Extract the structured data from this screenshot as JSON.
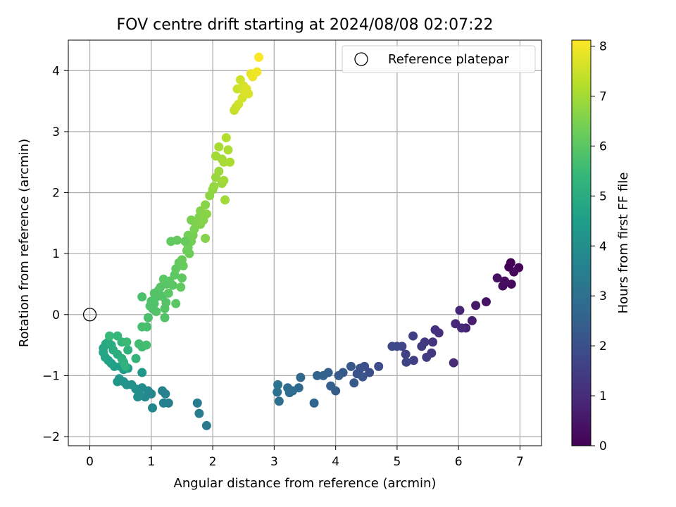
{
  "chart_data": {
    "type": "scatter",
    "title": "FOV centre drift starting at 2024/08/08 02:07:22",
    "xlabel": "Angular distance from reference (arcmin)",
    "ylabel": "Rotation from reference (arcmin)",
    "xlim": [
      -0.35,
      7.35
    ],
    "ylim": [
      -2.15,
      4.5
    ],
    "xticks": [
      0,
      1,
      2,
      3,
      4,
      5,
      6,
      7
    ],
    "yticks": [
      -2,
      -1,
      0,
      1,
      2,
      3,
      4
    ],
    "grid": true,
    "legend": {
      "position": "top-right",
      "entries": [
        "Reference platepar"
      ]
    },
    "reference_point": {
      "x": 0,
      "y": 0
    },
    "colorbar": {
      "label": "Hours from first FF file",
      "colormap": "viridis",
      "range": [
        0,
        8.12
      ],
      "ticks": [
        0,
        1,
        2,
        3,
        4,
        5,
        6,
        7,
        8
      ]
    },
    "colormap_stops": [
      "#440154",
      "#482878",
      "#3e4989",
      "#31688e",
      "#26828e",
      "#1f9e89",
      "#35b779",
      "#6ece58",
      "#b5de2b",
      "#fde725"
    ],
    "points": [
      [
        6.85,
        0.85,
        0.0
      ],
      [
        6.82,
        0.78,
        0.05
      ],
      [
        6.98,
        0.77,
        0.1
      ],
      [
        6.9,
        0.7,
        0.15
      ],
      [
        6.86,
        0.5,
        0.2
      ],
      [
        6.72,
        0.47,
        0.25
      ],
      [
        6.75,
        0.55,
        0.3
      ],
      [
        6.63,
        0.6,
        0.35
      ],
      [
        6.45,
        0.21,
        0.45
      ],
      [
        6.28,
        0.15,
        0.55
      ],
      [
        6.22,
        -0.1,
        0.65
      ],
      [
        6.12,
        -0.22,
        0.75
      ],
      [
        6.02,
        0.07,
        0.85
      ],
      [
        5.95,
        -0.15,
        0.9
      ],
      [
        5.92,
        -0.79,
        1.0
      ],
      [
        6.05,
        -0.22,
        0.95
      ],
      [
        5.68,
        -0.3,
        1.1
      ],
      [
        5.62,
        -0.25,
        1.15
      ],
      [
        5.58,
        -0.45,
        1.2
      ],
      [
        5.56,
        -0.63,
        1.25
      ],
      [
        5.45,
        -0.45,
        1.35
      ],
      [
        5.4,
        -0.52,
        1.4
      ],
      [
        5.48,
        -0.7,
        1.45
      ],
      [
        5.26,
        -0.35,
        1.5
      ],
      [
        5.27,
        -0.75,
        1.55
      ],
      [
        5.14,
        -0.65,
        1.6
      ],
      [
        5.15,
        -0.78,
        1.65
      ],
      [
        5.08,
        -0.52,
        1.7
      ],
      [
        5.0,
        -0.52,
        1.75
      ],
      [
        4.92,
        -0.52,
        1.8
      ],
      [
        4.7,
        -0.85,
        1.9
      ],
      [
        4.55,
        -0.95,
        1.95
      ],
      [
        4.47,
        -0.85,
        2.0
      ],
      [
        4.4,
        -0.88,
        2.05
      ],
      [
        4.35,
        -0.97,
        2.1
      ],
      [
        4.44,
        -1.02,
        2.15
      ],
      [
        4.3,
        -1.12,
        2.2
      ],
      [
        4.25,
        -0.85,
        2.25
      ],
      [
        4.12,
        -0.95,
        2.3
      ],
      [
        4.05,
        -1.0,
        2.35
      ],
      [
        4.0,
        -1.25,
        2.4
      ],
      [
        3.92,
        -1.17,
        2.45
      ],
      [
        3.88,
        -0.95,
        2.5
      ],
      [
        3.8,
        -1.0,
        2.55
      ],
      [
        3.7,
        -1.0,
        2.6
      ],
      [
        3.65,
        -1.45,
        2.65
      ],
      [
        3.43,
        -1.03,
        2.7
      ],
      [
        3.4,
        -1.2,
        2.75
      ],
      [
        3.3,
        -1.25,
        2.8
      ],
      [
        3.22,
        -1.2,
        2.85
      ],
      [
        3.25,
        -1.28,
        2.9
      ],
      [
        3.08,
        -1.42,
        2.95
      ],
      [
        3.05,
        -1.27,
        3.0
      ],
      [
        3.06,
        -1.15,
        3.05
      ],
      [
        1.9,
        -1.82,
        3.3
      ],
      [
        1.78,
        -1.62,
        3.35
      ],
      [
        1.75,
        -1.45,
        3.4
      ],
      [
        1.28,
        -1.45,
        3.5
      ],
      [
        1.2,
        -1.45,
        3.55
      ],
      [
        1.23,
        -1.3,
        3.6
      ],
      [
        1.18,
        -1.25,
        3.65
      ],
      [
        1.02,
        -1.53,
        3.7
      ],
      [
        1.0,
        -1.3,
        3.75
      ],
      [
        0.95,
        -1.25,
        3.8
      ],
      [
        0.9,
        -1.35,
        3.85
      ],
      [
        0.85,
        -1.2,
        3.9
      ],
      [
        0.8,
        -1.3,
        3.95
      ],
      [
        0.78,
        -1.35,
        4.0
      ],
      [
        0.75,
        -1.22,
        4.05
      ],
      [
        0.68,
        -1.15,
        4.1
      ],
      [
        0.6,
        -1.15,
        4.15
      ],
      [
        0.55,
        -1.1,
        4.2
      ],
      [
        0.48,
        -1.05,
        4.25
      ],
      [
        0.45,
        -1.1,
        4.3
      ],
      [
        0.85,
        -0.95,
        4.35
      ],
      [
        0.62,
        -0.88,
        4.4
      ],
      [
        0.55,
        -0.9,
        4.45
      ],
      [
        0.5,
        -0.85,
        4.5
      ],
      [
        0.4,
        -0.85,
        4.55
      ],
      [
        0.35,
        -0.8,
        4.6
      ],
      [
        0.3,
        -0.75,
        4.65
      ],
      [
        0.25,
        -0.7,
        4.7
      ],
      [
        0.22,
        -0.62,
        4.75
      ],
      [
        0.22,
        -0.55,
        4.8
      ],
      [
        0.26,
        -0.48,
        4.85
      ],
      [
        0.3,
        -0.45,
        4.9
      ],
      [
        0.35,
        -0.5,
        4.95
      ],
      [
        0.38,
        -0.58,
        5.0
      ],
      [
        0.45,
        -0.65,
        5.05
      ],
      [
        0.52,
        -0.72,
        5.1
      ],
      [
        0.55,
        -0.78,
        5.15
      ],
      [
        0.58,
        -0.85,
        5.2
      ],
      [
        0.62,
        -0.58,
        5.25
      ],
      [
        0.75,
        -0.72,
        5.3
      ],
      [
        0.52,
        -0.45,
        5.35
      ],
      [
        0.45,
        -0.35,
        5.4
      ],
      [
        0.32,
        -0.35,
        5.45
      ],
      [
        0.6,
        -0.45,
        5.5
      ],
      [
        0.85,
        -0.53,
        5.55
      ],
      [
        0.8,
        -0.48,
        5.6
      ],
      [
        0.92,
        -0.5,
        5.65
      ],
      [
        0.85,
        -0.2,
        5.7
      ],
      [
        0.93,
        -0.2,
        5.72
      ],
      [
        0.85,
        0.29,
        5.75
      ],
      [
        0.95,
        -0.05,
        5.78
      ],
      [
        1.02,
        0.1,
        5.8
      ],
      [
        1.0,
        0.22,
        5.82
      ],
      [
        1.05,
        0.18,
        5.84
      ],
      [
        1.1,
        0.3,
        5.86
      ],
      [
        1.12,
        0.4,
        5.88
      ],
      [
        1.18,
        0.3,
        5.9
      ],
      [
        1.08,
        0.05,
        5.9
      ],
      [
        1.22,
        0.1,
        5.92
      ],
      [
        1.24,
        0.2,
        5.94
      ],
      [
        1.25,
        0.5,
        5.96
      ],
      [
        1.3,
        0.55,
        5.98
      ],
      [
        1.28,
        0.35,
        6.0
      ],
      [
        1.35,
        0.48,
        6.0
      ],
      [
        1.38,
        0.65,
        6.05
      ],
      [
        1.4,
        0.75,
        6.1
      ],
      [
        1.45,
        0.85,
        6.15
      ],
      [
        1.48,
        0.45,
        6.1
      ],
      [
        1.5,
        0.9,
        6.2
      ],
      [
        1.52,
        0.8,
        6.2
      ],
      [
        1.58,
        1.05,
        6.25
      ],
      [
        1.6,
        1.1,
        6.3
      ],
      [
        1.62,
        1.0,
        6.28
      ],
      [
        1.65,
        1.2,
        6.35
      ],
      [
        1.68,
        1.3,
        6.4
      ],
      [
        1.6,
        1.3,
        6.38
      ],
      [
        1.65,
        1.55,
        6.45
      ],
      [
        1.7,
        1.4,
        6.45
      ],
      [
        1.72,
        1.5,
        6.5
      ],
      [
        1.78,
        1.6,
        6.55
      ],
      [
        1.8,
        1.48,
        6.55
      ],
      [
        1.8,
        1.7,
        6.6
      ],
      [
        1.85,
        1.55,
        6.6
      ],
      [
        1.88,
        1.8,
        6.65
      ],
      [
        1.88,
        1.25,
        6.6
      ],
      [
        1.9,
        1.65,
        6.65
      ],
      [
        1.95,
        1.95,
        6.7
      ],
      [
        2.0,
        2.05,
        6.75
      ],
      [
        2.02,
        2.1,
        6.8
      ],
      [
        2.05,
        2.25,
        6.85
      ],
      [
        2.1,
        2.35,
        6.9
      ],
      [
        2.15,
        2.15,
        6.9
      ],
      [
        2.18,
        2.2,
        6.95
      ],
      [
        2.2,
        1.88,
        6.95
      ],
      [
        2.05,
        2.6,
        7.0
      ],
      [
        2.1,
        2.75,
        7.05
      ],
      [
        2.15,
        2.55,
        7.0
      ],
      [
        2.25,
        2.7,
        7.1
      ],
      [
        2.22,
        2.9,
        7.15
      ],
      [
        2.18,
        2.5,
        7.05
      ],
      [
        2.28,
        2.5,
        7.1
      ],
      [
        1.55,
        1.2,
        6.2
      ],
      [
        1.42,
        1.22,
        6.15
      ],
      [
        1.32,
        1.2,
        6.1
      ],
      [
        1.2,
        0.58,
        6.0
      ],
      [
        1.15,
        0.45,
        5.95
      ],
      [
        1.05,
        0.35,
        5.9
      ],
      [
        0.98,
        0.14,
        5.85
      ],
      [
        1.22,
        -0.05,
        5.9
      ],
      [
        1.4,
        0.18,
        6.0
      ],
      [
        1.5,
        0.6,
        6.05
      ],
      [
        2.35,
        3.35,
        7.4
      ],
      [
        2.38,
        3.4,
        7.45
      ],
      [
        2.4,
        3.7,
        7.5
      ],
      [
        2.42,
        3.45,
        7.5
      ],
      [
        2.45,
        3.85,
        7.55
      ],
      [
        2.48,
        3.55,
        7.6
      ],
      [
        2.5,
        3.75,
        7.6
      ],
      [
        2.52,
        3.65,
        7.65
      ],
      [
        2.55,
        3.7,
        7.7
      ],
      [
        2.58,
        3.62,
        7.7
      ],
      [
        2.62,
        3.95,
        7.85
      ],
      [
        2.65,
        3.9,
        7.9
      ],
      [
        2.72,
        3.98,
        7.95
      ],
      [
        2.75,
        4.22,
        8.1
      ]
    ]
  }
}
